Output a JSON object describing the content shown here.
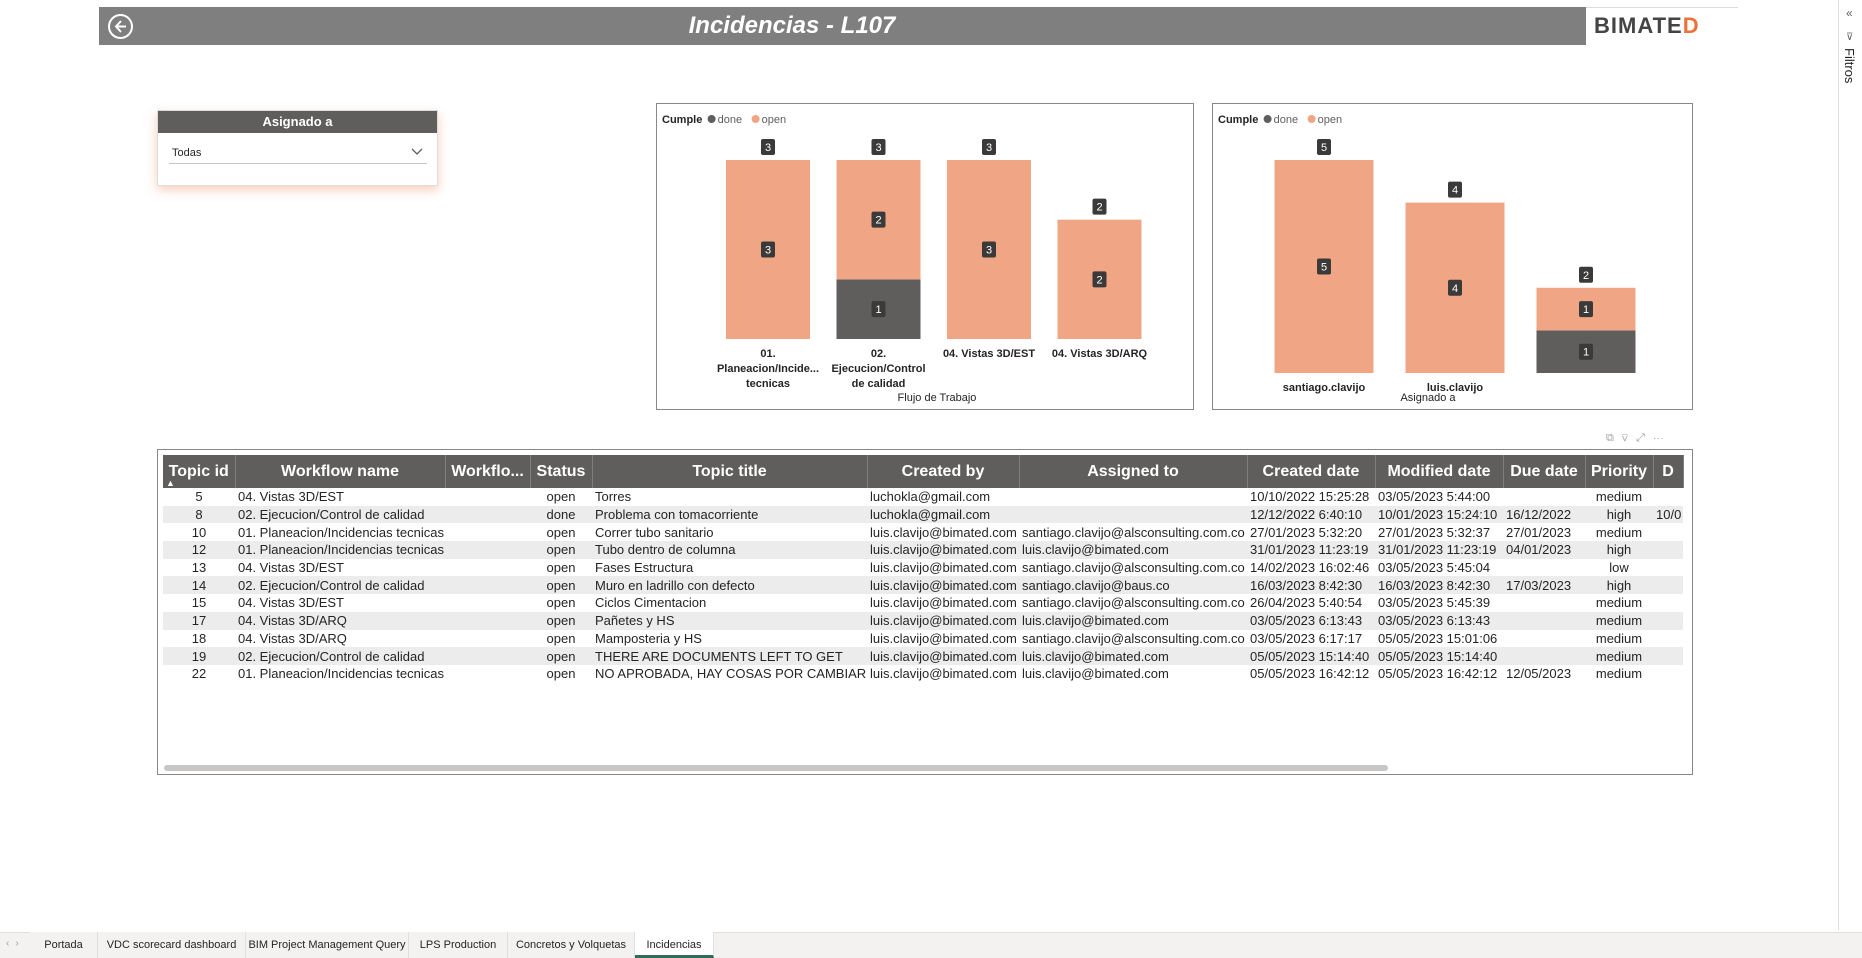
{
  "header": {
    "title": "Incidencias - L107",
    "logo": "BIMATED",
    "back_icon": "back-arrow-icon"
  },
  "filters_pane": {
    "label": "Filtros",
    "collapse_icon": "«"
  },
  "slicer": {
    "title": "Asignado a",
    "value": "Todas"
  },
  "colors": {
    "done": "#605e5c",
    "open": "#f0a584",
    "header": "#7f7f7f",
    "logo_accent": "#e8743b"
  },
  "chart_data": [
    {
      "type": "bar",
      "stacked": true,
      "legend_title": "Cumple",
      "legend": [
        "done",
        "open"
      ],
      "xlabel": "Flujo de Trabajo",
      "categories": [
        "01. Planeacion/Incide... tecnicas",
        "02. Ejecucion/Control de calidad",
        "04. Vistas 3D/EST",
        "04. Vistas 3D/ARQ"
      ],
      "category_lines": [
        [
          "01.",
          "Planeacion/Incide...",
          "tecnicas"
        ],
        [
          "02.",
          "Ejecucion/Control",
          "de calidad"
        ],
        [
          "04. Vistas 3D/EST"
        ],
        [
          "04. Vistas 3D/ARQ"
        ]
      ],
      "series": [
        {
          "name": "done",
          "values": [
            0,
            1,
            0,
            0
          ]
        },
        {
          "name": "open",
          "values": [
            3,
            2,
            3,
            2
          ]
        }
      ],
      "totals": [
        3,
        3,
        3,
        2
      ],
      "ylim": [
        0,
        3
      ]
    },
    {
      "type": "bar",
      "stacked": true,
      "legend_title": "Cumple",
      "legend": [
        "done",
        "open"
      ],
      "xlabel": "Asignado a",
      "categories": [
        "santiago.clavijo",
        "luis.clavijo",
        ""
      ],
      "category_lines": [
        [
          "santiago.clavijo"
        ],
        [
          "luis.clavijo"
        ],
        [
          ""
        ]
      ],
      "series": [
        {
          "name": "done",
          "values": [
            0,
            0,
            1
          ]
        },
        {
          "name": "open",
          "values": [
            5,
            4,
            1
          ]
        }
      ],
      "totals": [
        5,
        4,
        2
      ],
      "ylim": [
        0,
        5
      ]
    }
  ],
  "table": {
    "columns": [
      "Topic id",
      "Workflow name",
      "Workflo...",
      "Status",
      "Topic title",
      "Created by",
      "Assigned to",
      "Created date",
      "Modified date",
      "Due date",
      "Priority",
      "D"
    ],
    "rows": [
      [
        "5",
        "04. Vistas 3D/EST",
        "",
        "open",
        "Torres",
        "luchokla@gmail.com",
        "",
        "10/10/2022 15:25:28",
        "03/05/2023 5:44:00",
        "",
        "medium",
        ""
      ],
      [
        "8",
        "02. Ejecucion/Control de calidad",
        "",
        "done",
        "Problema con tomacorriente",
        "luchokla@gmail.com",
        "",
        "12/12/2022 6:40:10",
        "10/01/2023 15:24:10",
        "16/12/2022",
        "high",
        "10/0"
      ],
      [
        "10",
        "01. Planeacion/Incidencias tecnicas",
        "",
        "open",
        "Correr tubo sanitario",
        "luis.clavijo@bimated.com",
        "santiago.clavijo@alsconsulting.com.co",
        "27/01/2023 5:32:20",
        "27/01/2023 5:32:37",
        "27/01/2023",
        "medium",
        ""
      ],
      [
        "12",
        "01. Planeacion/Incidencias tecnicas",
        "",
        "open",
        "Tubo dentro de columna",
        "luis.clavijo@bimated.com",
        "luis.clavijo@bimated.com",
        "31/01/2023 11:23:19",
        "31/01/2023 11:23:19",
        "04/01/2023",
        "high",
        ""
      ],
      [
        "13",
        "04. Vistas 3D/EST",
        "",
        "open",
        "Fases Estructura",
        "luis.clavijo@bimated.com",
        "santiago.clavijo@alsconsulting.com.co",
        "14/02/2023 16:02:46",
        "03/05/2023 5:45:04",
        "",
        "low",
        ""
      ],
      [
        "14",
        "02. Ejecucion/Control de calidad",
        "",
        "open",
        "Muro en ladrillo con defecto",
        "luis.clavijo@bimated.com",
        "santiago.clavijo@baus.co",
        "16/03/2023 8:42:30",
        "16/03/2023 8:42:30",
        "17/03/2023",
        "high",
        ""
      ],
      [
        "15",
        "04. Vistas 3D/EST",
        "",
        "open",
        "Ciclos Cimentacion",
        "luis.clavijo@bimated.com",
        "santiago.clavijo@alsconsulting.com.co",
        "26/04/2023 5:40:54",
        "03/05/2023 5:45:39",
        "",
        "medium",
        ""
      ],
      [
        "17",
        "04. Vistas 3D/ARQ",
        "",
        "open",
        "Pañetes y HS",
        "luis.clavijo@bimated.com",
        "luis.clavijo@bimated.com",
        "03/05/2023 6:13:43",
        "03/05/2023 6:13:43",
        "",
        "medium",
        ""
      ],
      [
        "18",
        "04. Vistas 3D/ARQ",
        "",
        "open",
        "Mamposteria y HS",
        "luis.clavijo@bimated.com",
        "santiago.clavijo@alsconsulting.com.co",
        "03/05/2023 6:17:17",
        "05/05/2023 15:01:06",
        "",
        "medium",
        ""
      ],
      [
        "19",
        "02. Ejecucion/Control de calidad",
        "",
        "open",
        "THERE ARE DOCUMENTS LEFT TO GET",
        "luis.clavijo@bimated.com",
        "luis.clavijo@bimated.com",
        "05/05/2023 15:14:40",
        "05/05/2023 15:14:40",
        "",
        "medium",
        ""
      ],
      [
        "22",
        "01. Planeacion/Incidencias tecnicas",
        "",
        "open",
        "NO APROBADA, HAY COSAS POR CAMBIAR",
        "luis.clavijo@bimated.com",
        "luis.clavijo@bimated.com",
        "05/05/2023 16:42:12",
        "05/05/2023 16:42:12",
        "12/05/2023",
        "medium",
        ""
      ]
    ]
  },
  "tabs": [
    {
      "label": "Portada",
      "active": false
    },
    {
      "label": "VDC scorecard dashboard",
      "active": false
    },
    {
      "label": "BIM Project Management Query",
      "active": false
    },
    {
      "label": "LPS Production",
      "active": false
    },
    {
      "label": "Concretos y Volquetas",
      "active": false
    },
    {
      "label": "Incidencias",
      "active": true
    }
  ]
}
